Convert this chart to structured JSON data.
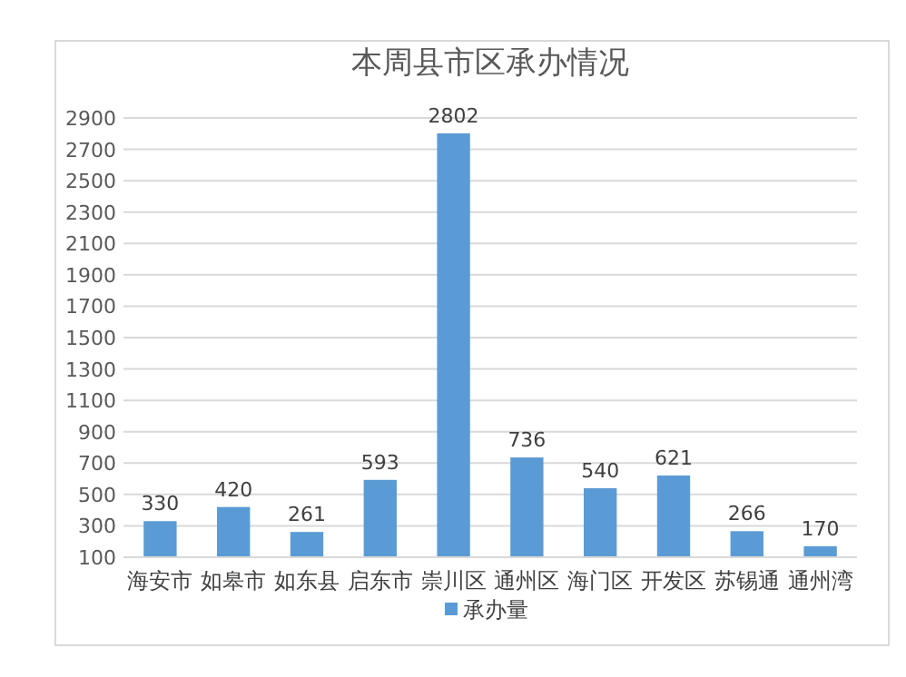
{
  "chart_data": {
    "type": "bar",
    "title": "本周县市区承办情况",
    "categories": [
      "海安市",
      "如皋市",
      "如东县",
      "启东市",
      "崇川区",
      "通州区",
      "海门区",
      "开发区",
      "苏锡通",
      "通州湾"
    ],
    "series": [
      {
        "name": "承办量",
        "color": "#5b9bd5",
        "values": [
          330,
          420,
          261,
          593,
          2802,
          736,
          540,
          621,
          266,
          170
        ]
      }
    ],
    "ylim": [
      100,
      2900
    ],
    "yticks": [
      100,
      300,
      500,
      700,
      900,
      1100,
      1300,
      1500,
      1700,
      1900,
      2100,
      2300,
      2500,
      2700,
      2900
    ],
    "grid": "y",
    "legend": "bottom",
    "data_labels": true
  }
}
